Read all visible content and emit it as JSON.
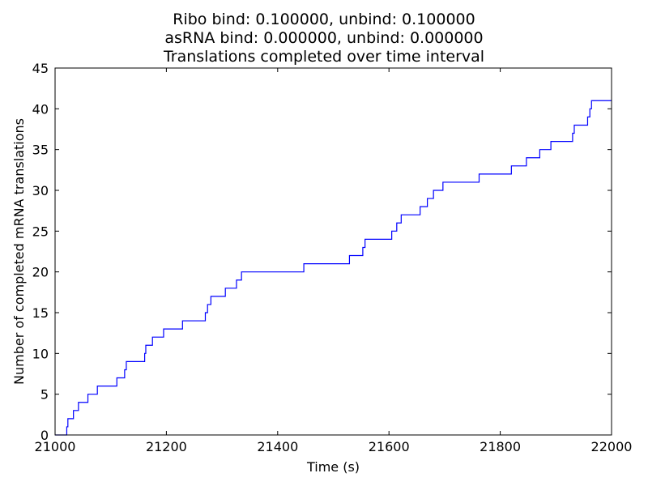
{
  "chart_data": {
    "type": "line",
    "title_lines": [
      "Ribo bind: 0.100000, unbind: 0.100000",
      "asRNA bind: 0.000000, unbind: 0.000000",
      "Translations completed over time interval"
    ],
    "xlabel": "Time (s)",
    "ylabel": "Number of completed mRNA translations",
    "xlim": [
      21000,
      22000
    ],
    "ylim": [
      0,
      45
    ],
    "xticks": [
      21000,
      21200,
      21400,
      21600,
      21800,
      22000
    ],
    "yticks": [
      0,
      5,
      10,
      15,
      20,
      25,
      30,
      35,
      40,
      45
    ],
    "grid": false,
    "line_color": "#0000ff",
    "series": [
      {
        "step": "post",
        "x": [
          21000,
          21021,
          21023,
          21027,
          21033,
          21042,
          21059,
          21076,
          21111,
          21125,
          21128,
          21161,
          21163,
          21175,
          21195,
          21229,
          21270,
          21274,
          21277,
          21280,
          21306,
          21326,
          21335,
          21447,
          21529,
          21553,
          21557,
          21605,
          21614,
          21622,
          21656,
          21669,
          21680,
          21697,
          21762,
          21820,
          21847,
          21871,
          21891,
          21930,
          21933,
          21957,
          21961,
          21964,
          22000
        ],
        "y": [
          0,
          1,
          2,
          2,
          3,
          4,
          5,
          6,
          7,
          8,
          9,
          10,
          11,
          12,
          13,
          14,
          15,
          16,
          16,
          17,
          18,
          19,
          20,
          21,
          22,
          23,
          24,
          25,
          26,
          27,
          28,
          29,
          30,
          31,
          32,
          33,
          34,
          35,
          36,
          37,
          38,
          39,
          40,
          41,
          41
        ]
      }
    ]
  }
}
